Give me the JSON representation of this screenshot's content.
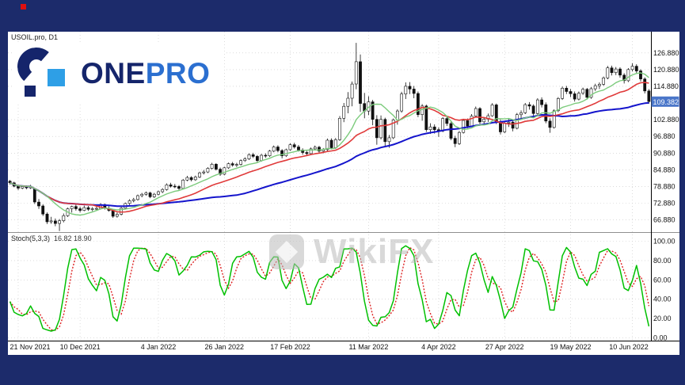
{
  "logo": {
    "one": "ONE",
    "pro": "PRO"
  },
  "watermark": {
    "text": "WikiFX"
  },
  "colors": {
    "frame_navy": "#1c2b6b",
    "chart_bg": "#ffffff",
    "grid": "#c6c6c6",
    "candle_up_fill": "#ffffff",
    "candle_down_fill": "#111111",
    "candle_stroke": "#111111",
    "ma_fast": "#7ccb7c",
    "ma_mid": "#e03a3a",
    "ma_slow": "#1414cc",
    "stoch_k": "#00c000",
    "stoch_d": "#dd2222",
    "price_tag": "#4a76c9",
    "logo_navy": "#15256b",
    "logo_blue": "#2e9fe6",
    "logo_pro": "#2b6fd0",
    "watermark_gray": "#bbbbbb",
    "red_dot": "#e01010"
  },
  "chart_data": [
    {
      "type": "candlestick",
      "title": "USOIL.pro, D1",
      "ylim": [
        62.5,
        134.5
      ],
      "y_ticks": [
        126.88,
        120.88,
        114.88,
        102.88,
        96.88,
        90.88,
        84.88,
        78.88,
        72.88,
        66.88
      ],
      "current_price": 109.382,
      "x_tick_labels": [
        "21 Nov 2021",
        "10 Dec 2021",
        "4 Jan 2022",
        "26 Jan 2022",
        "17 Feb 2022",
        "11 Mar 2022",
        "4 Apr 2022",
        "27 Apr 2022",
        "19 May 2022",
        "10 Jun 2022"
      ],
      "x_tick_indices": [
        2,
        17,
        36,
        52,
        68,
        87,
        104,
        120,
        136,
        151
      ],
      "overlays": [
        {
          "name": "ma-fast",
          "period": 10,
          "color_key": "ma_fast",
          "width": 1.4
        },
        {
          "name": "ma-mid",
          "period": 21,
          "color_key": "ma_mid",
          "width": 1.6
        },
        {
          "name": "ma-slow",
          "period": 50,
          "color_key": "ma_slow",
          "width": 2.0
        }
      ],
      "candles": [
        [
          80.8,
          81.2,
          79.6,
          80.2
        ],
        [
          80.2,
          80.6,
          78.6,
          79.0
        ],
        [
          79.0,
          79.4,
          77.6,
          78.3
        ],
        [
          78.3,
          79.3,
          77.9,
          78.8
        ],
        [
          78.8,
          79.2,
          77.9,
          78.4
        ],
        [
          78.4,
          79.5,
          78.0,
          78.9
        ],
        [
          78.0,
          78.2,
          72.6,
          73.3
        ],
        [
          73.3,
          74.4,
          70.8,
          71.9
        ],
        [
          71.9,
          72.5,
          68.3,
          69.0
        ],
        [
          69.0,
          69.6,
          65.4,
          66.2
        ],
        [
          66.2,
          68.0,
          65.5,
          66.5
        ],
        [
          66.5,
          67.4,
          64.6,
          65.6
        ],
        [
          65.6,
          67.2,
          62.9,
          66.6
        ],
        [
          66.6,
          69.2,
          66.0,
          68.4
        ],
        [
          68.4,
          71.3,
          68.0,
          70.9
        ],
        [
          70.9,
          72.0,
          69.5,
          71.7
        ],
        [
          71.7,
          72.4,
          70.2,
          70.9
        ],
        [
          70.9,
          71.6,
          69.6,
          70.3
        ],
        [
          70.3,
          72.0,
          70.0,
          71.3
        ],
        [
          71.3,
          71.9,
          70.1,
          70.7
        ],
        [
          70.7,
          71.5,
          70.0,
          70.9
        ],
        [
          70.9,
          71.6,
          70.2,
          71.0
        ],
        [
          71.0,
          72.9,
          70.6,
          72.4
        ],
        [
          72.4,
          72.8,
          70.6,
          71.1
        ],
        [
          71.1,
          71.8,
          69.8,
          70.3
        ],
        [
          70.3,
          70.7,
          67.6,
          68.2
        ],
        [
          68.2,
          69.5,
          67.7,
          68.9
        ],
        [
          68.9,
          71.5,
          68.5,
          71.1
        ],
        [
          71.1,
          73.1,
          70.8,
          72.8
        ],
        [
          72.8,
          74.3,
          72.3,
          73.8
        ],
        [
          73.8,
          74.8,
          73.2,
          74.2
        ],
        [
          74.2,
          76.0,
          73.8,
          75.6
        ],
        [
          75.6,
          76.6,
          75.0,
          76.1
        ],
        [
          76.1,
          77.1,
          75.6,
          76.6
        ],
        [
          76.6,
          77.0,
          74.7,
          75.2
        ],
        [
          75.2,
          76.6,
          74.8,
          76.1
        ],
        [
          76.1,
          77.4,
          75.7,
          77.0
        ],
        [
          77.0,
          78.3,
          76.5,
          77.8
        ],
        [
          77.8,
          80.0,
          77.4,
          79.5
        ],
        [
          79.5,
          80.2,
          78.5,
          79.0
        ],
        [
          79.0,
          79.8,
          78.3,
          78.9
        ],
        [
          78.9,
          79.4,
          77.6,
          78.2
        ],
        [
          78.2,
          81.6,
          77.9,
          81.2
        ],
        [
          81.2,
          82.7,
          80.8,
          82.1
        ],
        [
          82.1,
          82.6,
          80.7,
          81.3
        ],
        [
          81.3,
          82.8,
          80.9,
          82.3
        ],
        [
          82.3,
          84.2,
          81.9,
          83.8
        ],
        [
          83.8,
          84.8,
          83.2,
          84.1
        ],
        [
          84.1,
          85.8,
          83.7,
          85.4
        ],
        [
          85.4,
          87.4,
          85.0,
          86.9
        ],
        [
          86.9,
          87.3,
          84.6,
          85.1
        ],
        [
          85.1,
          85.7,
          82.7,
          83.3
        ],
        [
          83.3,
          86.0,
          82.9,
          85.6
        ],
        [
          85.6,
          87.5,
          85.2,
          87.1
        ],
        [
          87.1,
          87.7,
          86.0,
          86.6
        ],
        [
          86.6,
          87.4,
          85.9,
          86.8
        ],
        [
          86.8,
          88.6,
          86.4,
          88.2
        ],
        [
          88.2,
          89.4,
          87.7,
          88.8
        ],
        [
          88.8,
          90.8,
          88.4,
          90.3
        ],
        [
          90.3,
          91.0,
          89.1,
          89.7
        ],
        [
          89.7,
          90.2,
          87.5,
          88.2
        ],
        [
          88.2,
          90.6,
          87.8,
          90.1
        ],
        [
          90.1,
          90.8,
          89.2,
          89.9
        ],
        [
          89.9,
          92.0,
          89.5,
          91.6
        ],
        [
          91.6,
          93.6,
          91.2,
          93.1
        ],
        [
          93.1,
          93.7,
          91.2,
          91.8
        ],
        [
          91.8,
          92.3,
          89.0,
          89.9
        ],
        [
          89.9,
          92.5,
          89.5,
          92.1
        ],
        [
          92.1,
          94.4,
          91.7,
          93.9
        ],
        [
          93.9,
          94.6,
          92.5,
          93.1
        ],
        [
          93.1,
          93.8,
          91.4,
          92.0
        ],
        [
          92.0,
          92.6,
          90.3,
          91.1
        ],
        [
          91.1,
          91.7,
          89.8,
          90.7
        ],
        [
          90.7,
          92.9,
          90.3,
          92.4
        ],
        [
          92.4,
          93.6,
          91.8,
          93.0
        ],
        [
          93.0,
          93.5,
          90.9,
          91.6
        ],
        [
          91.6,
          92.7,
          90.8,
          92.1
        ],
        [
          92.1,
          96.1,
          91.7,
          95.5
        ],
        [
          95.5,
          96.2,
          92.2,
          92.8
        ],
        [
          92.8,
          96.3,
          92.4,
          95.7
        ],
        [
          95.7,
          104.2,
          95.3,
          103.4
        ],
        [
          103.4,
          108.9,
          102.0,
          107.7
        ],
        [
          107.7,
          112.8,
          105.2,
          110.6
        ],
        [
          110.6,
          116.6,
          107.7,
          115.7
        ],
        [
          115.7,
          130.5,
          113.8,
          123.7
        ],
        [
          123.7,
          126.3,
          105.7,
          108.7
        ],
        [
          108.7,
          112.5,
          103.4,
          106.0
        ],
        [
          106.0,
          111.3,
          104.5,
          109.3
        ],
        [
          109.3,
          110.0,
          100.9,
          103.0
        ],
        [
          103.0,
          104.5,
          93.9,
          96.4
        ],
        [
          96.4,
          104.4,
          95.8,
          103.0
        ],
        [
          103.0,
          103.6,
          93.5,
          95.0
        ],
        [
          95.0,
          97.4,
          92.8,
          96.4
        ],
        [
          96.4,
          103.3,
          95.9,
          102.8
        ],
        [
          102.8,
          106.6,
          101.1,
          106.0
        ],
        [
          106.0,
          112.9,
          105.4,
          112.1
        ],
        [
          112.1,
          116.3,
          110.3,
          114.9
        ],
        [
          114.9,
          116.4,
          112.1,
          113.9
        ],
        [
          113.9,
          115.0,
          110.6,
          112.3
        ],
        [
          112.3,
          113.0,
          103.8,
          104.7
        ],
        [
          104.7,
          108.5,
          102.5,
          107.8
        ],
        [
          107.8,
          108.3,
          98.5,
          99.3
        ],
        [
          99.3,
          101.6,
          97.8,
          100.3
        ],
        [
          100.3,
          101.2,
          97.9,
          99.3
        ],
        [
          99.3,
          100.1,
          96.7,
          98.8
        ],
        [
          98.8,
          103.8,
          98.4,
          103.3
        ],
        [
          103.3,
          104.0,
          100.6,
          101.5
        ],
        [
          101.5,
          102.2,
          95.5,
          96.2
        ],
        [
          96.2,
          97.1,
          93.0,
          94.3
        ],
        [
          94.3,
          98.8,
          93.8,
          98.3
        ],
        [
          98.3,
          103.1,
          97.9,
          102.6
        ],
        [
          102.6,
          103.3,
          99.8,
          100.6
        ],
        [
          100.6,
          104.9,
          100.2,
          104.2
        ],
        [
          104.2,
          107.6,
          103.7,
          106.9
        ],
        [
          106.9,
          107.4,
          101.3,
          102.1
        ],
        [
          102.1,
          103.8,
          100.9,
          103.1
        ],
        [
          103.1,
          105.1,
          102.1,
          104.3
        ],
        [
          104.3,
          108.8,
          103.9,
          108.2
        ],
        [
          108.2,
          108.7,
          101.3,
          102.1
        ],
        [
          102.1,
          103.0,
          97.6,
          98.5
        ],
        [
          98.5,
          102.3,
          98.1,
          101.7
        ],
        [
          101.7,
          103.1,
          100.3,
          102.0
        ],
        [
          102.0,
          102.7,
          98.7,
          99.8
        ],
        [
          99.8,
          105.3,
          99.4,
          104.7
        ],
        [
          104.7,
          106.2,
          103.3,
          105.4
        ],
        [
          105.4,
          108.9,
          104.9,
          108.3
        ],
        [
          108.3,
          109.2,
          106.5,
          107.8
        ],
        [
          107.8,
          108.4,
          103.9,
          105.1
        ],
        [
          105.1,
          110.6,
          104.7,
          110.0
        ],
        [
          110.0,
          110.9,
          107.3,
          108.3
        ],
        [
          108.3,
          109.1,
          101.6,
          102.4
        ],
        [
          102.4,
          103.4,
          98.2,
          100.1
        ],
        [
          100.1,
          106.6,
          99.7,
          106.1
        ],
        [
          106.1,
          111.0,
          105.6,
          110.5
        ],
        [
          110.5,
          114.8,
          110.0,
          114.2
        ],
        [
          114.2,
          115.0,
          112.1,
          113.0
        ],
        [
          113.0,
          113.9,
          111.0,
          112.2
        ],
        [
          112.2,
          113.0,
          109.4,
          110.3
        ],
        [
          110.3,
          113.0,
          109.8,
          112.4
        ],
        [
          112.4,
          114.4,
          111.8,
          113.8
        ],
        [
          113.8,
          114.3,
          110.1,
          110.9
        ],
        [
          110.9,
          114.6,
          110.4,
          114.0
        ],
        [
          114.0,
          115.8,
          113.2,
          115.1
        ],
        [
          115.1,
          116.3,
          113.9,
          115.6
        ],
        [
          115.6,
          118.4,
          115.1,
          117.9
        ],
        [
          117.9,
          122.2,
          117.4,
          121.5
        ],
        [
          121.5,
          122.3,
          118.8,
          119.8
        ],
        [
          119.8,
          121.8,
          118.9,
          121.1
        ],
        [
          121.1,
          121.7,
          118.0,
          118.9
        ],
        [
          118.9,
          119.6,
          115.9,
          116.9
        ],
        [
          116.9,
          121.4,
          116.4,
          120.9
        ],
        [
          120.9,
          123.2,
          120.2,
          122.1
        ],
        [
          122.1,
          122.8,
          119.4,
          120.4
        ],
        [
          120.4,
          121.0,
          116.6,
          117.5
        ],
        [
          117.5,
          118.1,
          112.3,
          113.2
        ],
        [
          113.2,
          113.9,
          108.6,
          109.4
        ]
      ]
    },
    {
      "type": "line",
      "title": "Stoch(5,3,3)",
      "values_label": "16.82 18.90",
      "ylim": [
        -3,
        107
      ],
      "y_ticks": [
        100,
        80,
        60,
        40,
        20,
        0
      ],
      "indicator": {
        "k_period": 5,
        "slowing": 3,
        "d_period": 3
      }
    }
  ]
}
